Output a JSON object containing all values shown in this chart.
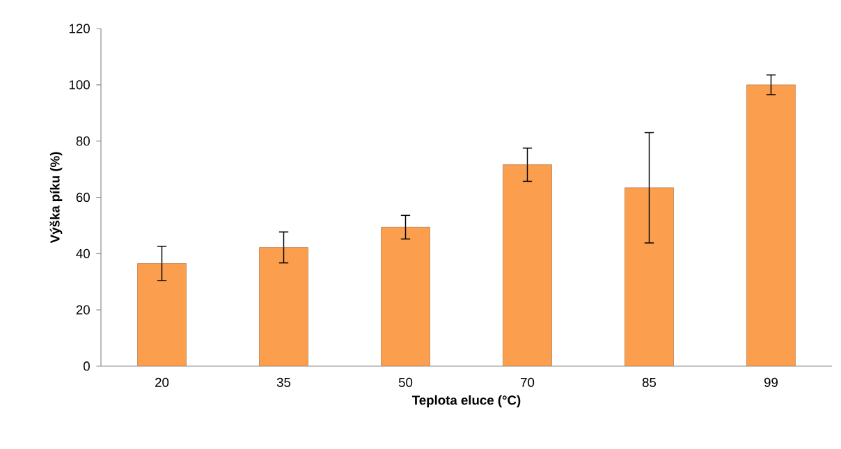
{
  "chart_data": {
    "type": "bar",
    "xlabel": "Teplota eluce (°C)",
    "ylabel": "Výška píku (%)",
    "categories": [
      "20",
      "35",
      "50",
      "70",
      "85",
      "99"
    ],
    "values": [
      36.5,
      42.2,
      49.4,
      71.6,
      63.4,
      100
    ],
    "errors": [
      6.1,
      5.5,
      4.2,
      5.9,
      19.6,
      3.5
    ],
    "color": "#fb9f4f",
    "ylim": [
      0,
      120
    ],
    "yticks": [
      0,
      20,
      40,
      60,
      80,
      100,
      120
    ],
    "grid": false
  }
}
